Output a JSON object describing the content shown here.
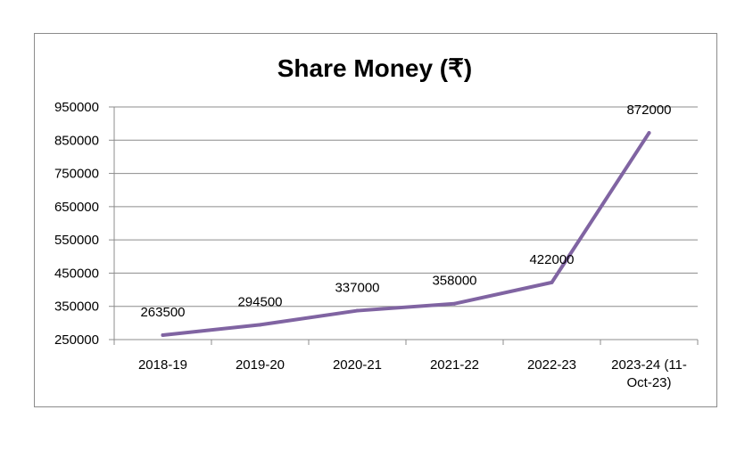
{
  "chart_data": {
    "type": "line",
    "title": "Share Money (₹)",
    "categories": [
      "2018-19",
      "2019-20",
      "2020-21",
      "2021-22",
      "2022-23",
      "2023-24 (11-Oct-23)"
    ],
    "category_label_lines": [
      [
        "2018-19"
      ],
      [
        "2019-20"
      ],
      [
        "2020-21"
      ],
      [
        "2021-22"
      ],
      [
        "2022-23"
      ],
      [
        "2023-24 (11-",
        "Oct-23)"
      ]
    ],
    "series": [
      {
        "values": [
          263500,
          294500,
          337000,
          358000,
          422000,
          872000
        ],
        "color": "#8064a2"
      }
    ],
    "data_labels": [
      "263500",
      "294500",
      "337000",
      "358000",
      "422000",
      "872000"
    ],
    "ylim": [
      250000,
      950000
    ],
    "yticks": [
      250000,
      350000,
      450000,
      550000,
      650000,
      750000,
      850000,
      950000
    ],
    "ytick_labels": [
      "250000",
      "350000",
      "450000",
      "550000",
      "650000",
      "750000",
      "850000",
      "950000"
    ],
    "grid": true,
    "legend": "none"
  }
}
